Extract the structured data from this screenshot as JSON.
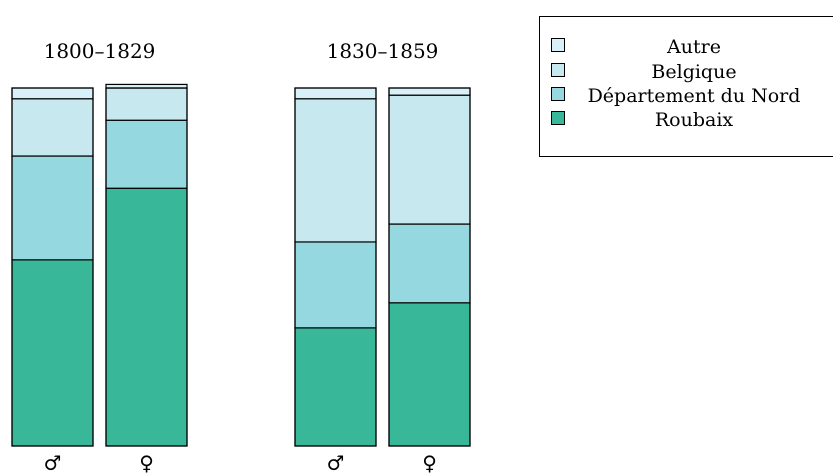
{
  "chart_data": {
    "type": "bar",
    "stacked": true,
    "normalized": true,
    "groups": [
      {
        "title": "1800–1829",
        "categories": [
          "♂",
          "♀"
        ],
        "series": [
          {
            "name": "Roubaix",
            "values": [
              0.52,
              0.72
            ]
          },
          {
            "name": "Département du Nord",
            "values": [
              0.29,
              0.19
            ]
          },
          {
            "name": "Belgique",
            "values": [
              0.16,
              0.09
            ]
          },
          {
            "name": "Autre",
            "values": [
              0.03,
              0.01
            ]
          }
        ]
      },
      {
        "title": "1830–1859",
        "categories": [
          "♂",
          "♀"
        ],
        "series": [
          {
            "name": "Roubaix",
            "values": [
              0.33,
              0.4
            ]
          },
          {
            "name": "Département du Nord",
            "values": [
              0.24,
              0.22
            ]
          },
          {
            "name": "Belgique",
            "values": [
              0.4,
              0.36
            ]
          },
          {
            "name": "Autre",
            "values": [
              0.03,
              0.02
            ]
          }
        ]
      }
    ],
    "legend": {
      "placement": "top-right",
      "entries": [
        "Autre",
        "Belgique",
        "Département du Nord",
        "Roubaix"
      ]
    },
    "colors": {
      "Roubaix": "#38b898",
      "Département du Nord": "#96d8e0",
      "Belgique": "#c8e8f0",
      "Autre": "#d8f0f8"
    },
    "grid": false
  }
}
